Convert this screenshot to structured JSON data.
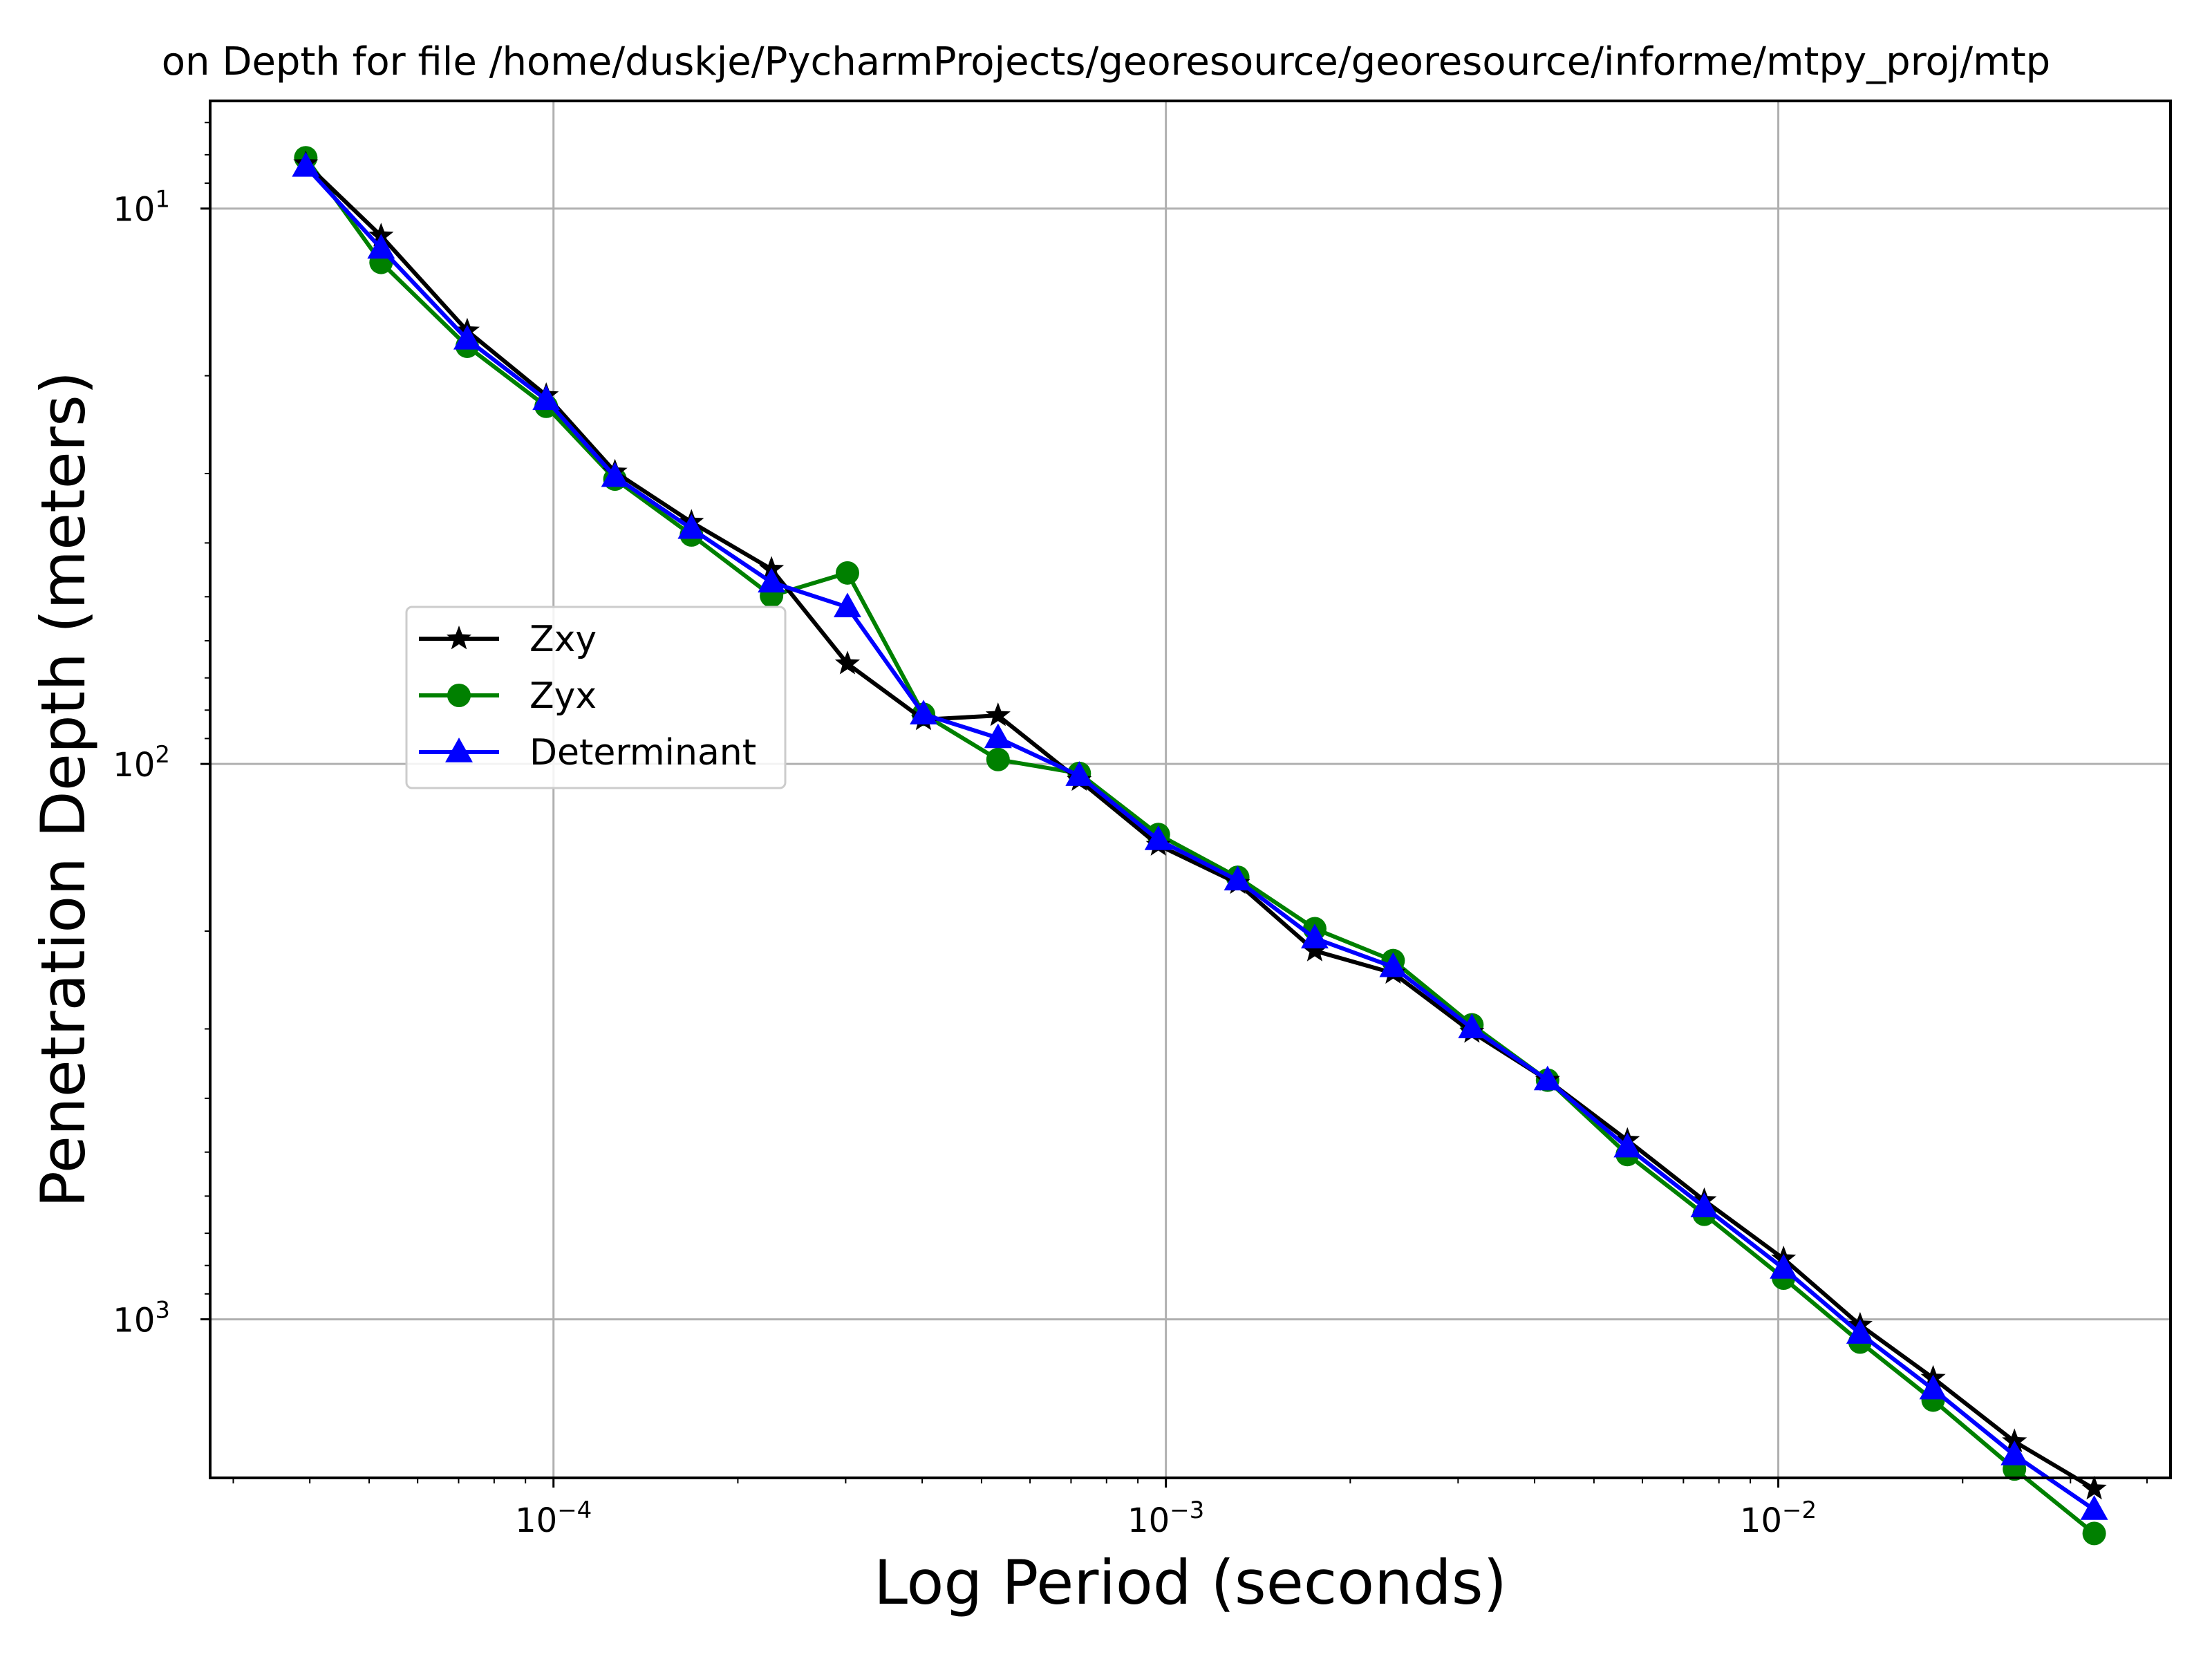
{
  "chart_data": {
    "type": "line",
    "title": "on Depth for file /home/duskje/PycharmProjects/georesource/georesource/informe/mtpy_proj/mtp",
    "xlabel": "Log Period (seconds)",
    "ylabel": "Penetration Depth (meters)",
    "x_scale": "log",
    "y_scale": "log",
    "y_inverted": true,
    "xlim": [
      2.75e-05,
      0.0437
    ],
    "ylim": [
      1930,
      6.4
    ],
    "grid": true,
    "legend_position": "center-left",
    "x_tick_labels": [
      {
        "value": 0.0001,
        "base": "10",
        "exp": "−4"
      },
      {
        "value": 0.001,
        "base": "10",
        "exp": "−3"
      },
      {
        "value": 0.01,
        "base": "10",
        "exp": "−2"
      }
    ],
    "y_tick_labels": [
      {
        "value": 10,
        "base": "10",
        "exp": "1"
      },
      {
        "value": 100,
        "base": "10",
        "exp": "2"
      },
      {
        "value": 1000,
        "base": "10",
        "exp": "3"
      }
    ],
    "x": [
      3.94e-05,
      5.23e-05,
      7.23e-05,
      9.73e-05,
      0.000126,
      0.000168,
      0.000227,
      0.000302,
      0.000402,
      0.000532,
      0.000722,
      0.000972,
      0.00131,
      0.00175,
      0.00235,
      0.00316,
      0.0042,
      0.00567,
      0.00757,
      0.0102,
      0.0136,
      0.0179,
      0.0243,
      0.0328
    ],
    "series": [
      {
        "name": "Zxy",
        "color": "#000000",
        "marker": "star",
        "values": [
          8.3,
          11.2,
          16.6,
          21.7,
          29.8,
          36.7,
          44.6,
          66.0,
          83.2,
          81.8,
          107,
          140,
          164,
          217,
          238,
          304,
          371,
          476,
          611,
          778,
          1024,
          1276,
          1660,
          2020
        ]
      },
      {
        "name": "Zyx",
        "color": "#008000",
        "marker": "circle",
        "values": [
          8.1,
          12.5,
          17.7,
          22.7,
          30.7,
          38.7,
          49.8,
          45.3,
          81.4,
          98.2,
          104,
          134,
          160,
          198,
          226,
          295,
          371,
          505,
          647,
          843,
          1099,
          1398,
          1860,
          2430
        ]
      },
      {
        "name": "Determinant",
        "color": "#0000ff",
        "marker": "triangle",
        "values": [
          8.4,
          11.8,
          17.2,
          22.1,
          30.4,
          37.7,
          47.1,
          52.2,
          81.4,
          89.8,
          105,
          137,
          162,
          206,
          232,
          299,
          371,
          490,
          628,
          810,
          1061,
          1336,
          1756,
          2202
        ]
      }
    ]
  }
}
